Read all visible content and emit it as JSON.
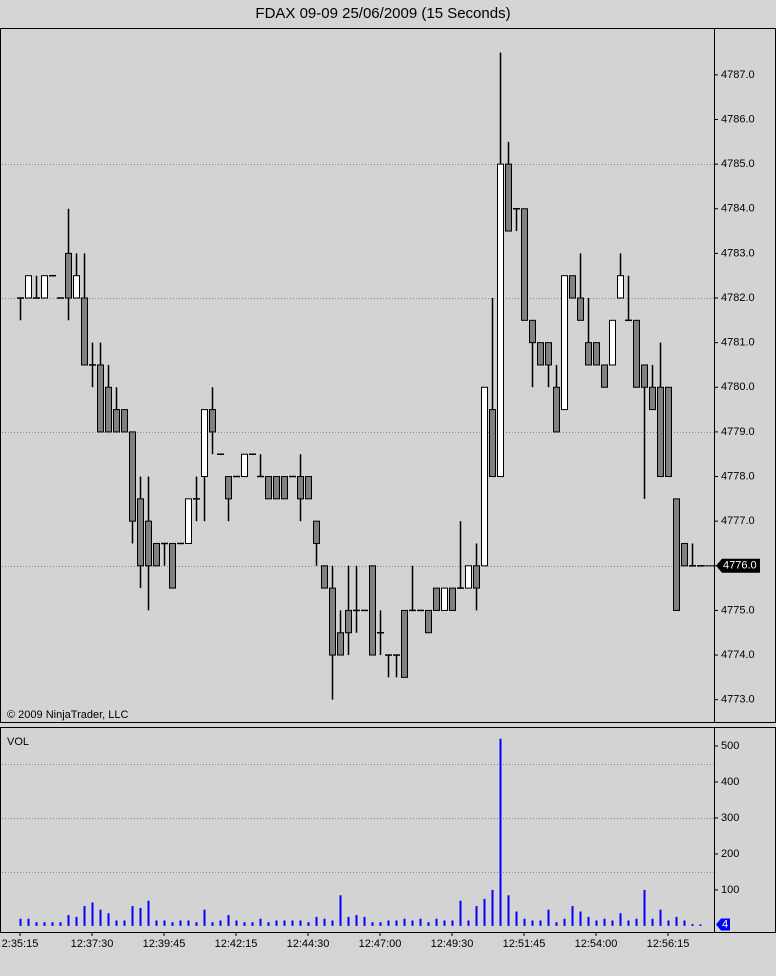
{
  "chart_data": [
    {
      "type": "candlestick",
      "title": "FDAX 09-09  25/06/2009 (15 Seconds)",
      "annotation": "© 2009 NinjaTrader, LLC",
      "categories": [
        "2:35:15",
        null,
        null,
        null,
        null,
        null,
        null,
        null,
        null,
        "12:37:30",
        null,
        null,
        null,
        null,
        null,
        null,
        null,
        null,
        "12:39:45",
        null,
        null,
        null,
        null,
        null,
        null,
        null,
        null,
        "12:42:15",
        null,
        null,
        null,
        null,
        null,
        null,
        null,
        null,
        "12:44:30",
        null,
        null,
        null,
        null,
        null,
        null,
        null,
        null,
        "12:47:00",
        null,
        null,
        null,
        null,
        null,
        null,
        null,
        null,
        "12:49:30",
        null,
        null,
        null,
        null,
        null,
        null,
        null,
        null,
        "12:51:45",
        null,
        null,
        null,
        null,
        null,
        null,
        null,
        null,
        "12:54:00",
        null,
        null,
        null,
        null,
        null,
        null,
        null,
        null,
        "12:56:15",
        null,
        null,
        null,
        null
      ],
      "open": [
        4782,
        4782,
        4782,
        4782,
        4782.5,
        4782,
        4783,
        4782,
        4782,
        4780.5,
        4780.5,
        4780,
        4779.5,
        4779.5,
        4779,
        4777.5,
        4777,
        4776.5,
        4776.5,
        4776.5,
        4776.5,
        4776.5,
        4777.5,
        4778,
        4779.5,
        4778.5,
        4778,
        4778,
        4778,
        4778.5,
        4778,
        4778,
        4778,
        4778,
        4778,
        4778,
        4778,
        4777,
        4776,
        4775.5,
        4774.5,
        4775,
        4775,
        4775,
        4776,
        4774.5,
        4774,
        4774,
        4775,
        4775,
        4775,
        4775,
        4775.5,
        4775,
        4775.5,
        4775.5,
        4775.5,
        4776,
        4776,
        4779.5,
        4778,
        4785,
        4784,
        4784,
        4781.5,
        4781,
        4781,
        4780,
        4779.5,
        4782.5,
        4782,
        4781,
        4781,
        4780.5,
        4780.5,
        4782,
        4781.5,
        4781.5,
        4780.5,
        4780,
        4780,
        4780,
        4777.5,
        4776.5,
        4776,
        4776
      ],
      "high": [
        4782,
        4782.5,
        4782.5,
        4782.5,
        4782.5,
        4782,
        4784,
        4783,
        4783,
        4781,
        4781,
        4780.5,
        4780,
        4779.5,
        4779,
        4778,
        4778,
        4776.5,
        4776.5,
        4776.5,
        4776.5,
        4777.5,
        4778,
        4779.5,
        4780,
        4778.5,
        4778,
        4778,
        4778.5,
        4778.5,
        4778.5,
        4778,
        4778,
        4778,
        4778,
        4778.5,
        4778,
        4777,
        4776,
        4776,
        4775,
        4776,
        4776,
        4775,
        4776,
        4775,
        4774,
        4774,
        4775,
        4776,
        4775,
        4775,
        4775.5,
        4775.5,
        4775.5,
        4777,
        4776,
        4776.5,
        4780,
        4782,
        4787.5,
        4785.5,
        4784,
        4784,
        4781.5,
        4781,
        4781,
        4780.5,
        4782.5,
        4782.5,
        4783,
        4782,
        4781,
        4780.5,
        4781.5,
        4783,
        4782.5,
        4781.5,
        4780.5,
        4780.5,
        4781,
        4780,
        4777.5,
        4776.5,
        4776.5,
        4776
      ],
      "low": [
        4781.5,
        4782,
        4782,
        4782,
        4782.5,
        4782,
        4781.5,
        4782,
        4780.5,
        4780,
        4779,
        4779,
        4779,
        4779,
        4776.5,
        4775.5,
        4775,
        4776,
        4776,
        4775.5,
        4776.5,
        4776.5,
        4777,
        4777,
        4778.5,
        4778.5,
        4777,
        4778,
        4778,
        4778.5,
        4778,
        4777.5,
        4777.5,
        4777.5,
        4778,
        4777,
        4777.5,
        4776,
        4775.5,
        4773,
        4774,
        4774,
        4774.5,
        4775,
        4774,
        4774,
        4773.5,
        4773.5,
        4773.5,
        4775,
        4775,
        4774.5,
        4775,
        4775,
        4775,
        4775.5,
        4775.5,
        4775,
        4776,
        4778,
        4778,
        4783.5,
        4783.5,
        4781.5,
        4780,
        4780.5,
        4780,
        4779,
        4779.5,
        4782,
        4781.5,
        4780.5,
        4780.5,
        4780,
        4780.5,
        4782,
        4781.5,
        4780,
        4777.5,
        4779.5,
        4778,
        4778,
        4775,
        4776,
        4776,
        4776
      ],
      "close": [
        4782,
        4782.5,
        4782,
        4782.5,
        4782.5,
        4782,
        4782,
        4782.5,
        4780.5,
        4780.5,
        4779,
        4779,
        4779,
        4779,
        4777,
        4776,
        4776,
        4776,
        4776.5,
        4775.5,
        4776.5,
        4777.5,
        4777.5,
        4779.5,
        4779,
        4778.5,
        4777.5,
        4778,
        4778.5,
        4778.5,
        4778,
        4777.5,
        4777.5,
        4777.5,
        4778,
        4777.5,
        4777.5,
        4776.5,
        4775.5,
        4774,
        4774,
        4774.5,
        4775,
        4775,
        4774,
        4774.5,
        4774,
        4774,
        4773.5,
        4775,
        4775,
        4774.5,
        4775,
        4775.5,
        4775,
        4775.5,
        4776,
        4775.5,
        4780,
        4778,
        4785,
        4783.5,
        4784,
        4781.5,
        4781,
        4780.5,
        4780.5,
        4779,
        4782.5,
        4782,
        4781.5,
        4780.5,
        4780.5,
        4780,
        4781.5,
        4782.5,
        4781.5,
        4780,
        4780,
        4779.5,
        4778,
        4778,
        4775,
        4776,
        4776,
        4776
      ],
      "last_close_label": "4776.0",
      "up_color": "#ffffff",
      "down_color": "#808080",
      "ylim": [
        4772.5,
        4788.05
      ],
      "yticks": [
        {
          "value": 4773,
          "label": "4773.0"
        },
        {
          "value": 4774,
          "label": "4774.0"
        },
        {
          "value": 4775,
          "label": "4775.0"
        },
        {
          "value": 4776,
          "label": "4776.0"
        },
        {
          "value": 4777,
          "label": "4777.0"
        },
        {
          "value": 4778,
          "label": "4778.0"
        },
        {
          "value": 4779,
          "label": "4779.0"
        },
        {
          "value": 4780,
          "label": "4780.0"
        },
        {
          "value": 4781,
          "label": "4781.0"
        },
        {
          "value": 4782,
          "label": "4782.0"
        },
        {
          "value": 4783,
          "label": "4783.0"
        },
        {
          "value": 4784,
          "label": "4784.0"
        },
        {
          "value": 4785,
          "label": "4785.0"
        },
        {
          "value": 4786,
          "label": "4786.0"
        },
        {
          "value": 4787,
          "label": "4787.0"
        }
      ],
      "grid_values": [
        4776,
        4779,
        4782,
        4785
      ]
    },
    {
      "type": "bar",
      "title": "VOL",
      "color": "#0000ff",
      "values": [
        20,
        20,
        10,
        10,
        10,
        10,
        30,
        25,
        55,
        65,
        45,
        35,
        15,
        15,
        55,
        50,
        70,
        15,
        15,
        10,
        15,
        15,
        10,
        45,
        10,
        15,
        30,
        15,
        10,
        10,
        20,
        10,
        15,
        15,
        15,
        15,
        10,
        25,
        20,
        15,
        85,
        25,
        30,
        25,
        10,
        10,
        15,
        15,
        20,
        15,
        20,
        10,
        20,
        15,
        15,
        70,
        15,
        55,
        75,
        100,
        520,
        85,
        40,
        20,
        15,
        15,
        45,
        10,
        20,
        55,
        40,
        25,
        15,
        20,
        15,
        35,
        15,
        20,
        100,
        20,
        45,
        15,
        25,
        15,
        5,
        4
      ],
      "ylim": [
        -17,
        550
      ],
      "yticks": [
        100,
        200,
        300,
        400,
        500
      ],
      "grid_values": [
        150,
        300,
        450
      ]
    }
  ]
}
